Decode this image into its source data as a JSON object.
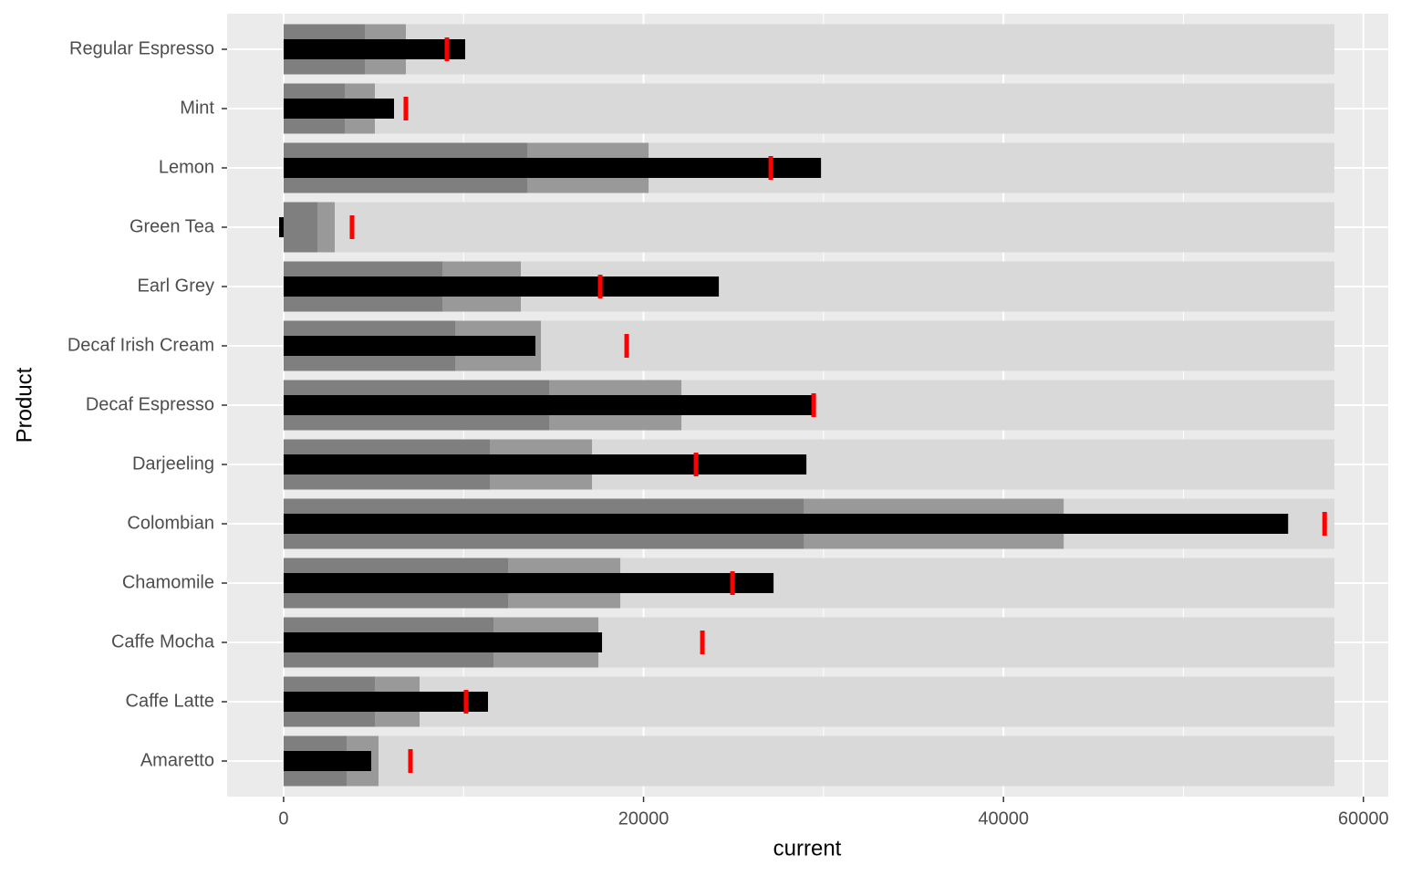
{
  "chart_data": {
    "type": "bullet",
    "x_label": "current",
    "y_label": "Product",
    "categories": [
      "Amaretto",
      "Caffe Latte",
      "Caffe Mocha",
      "Chamomile",
      "Colombian",
      "Darjeeling",
      "Decaf Espresso",
      "Decaf Irish Cream",
      "Earl Grey",
      "Green Tea",
      "Lemon",
      "Mint",
      "Regular Espresso"
    ],
    "high_range": {
      "color": "#d9d9d9",
      "values": [
        58390,
        58390,
        58390,
        58390,
        58390,
        58390,
        58390,
        58390,
        58390,
        58390,
        58390,
        58390,
        58390
      ]
    },
    "mid_range": {
      "color": "#999999",
      "values": [
        5272,
        7554,
        17490,
        18707,
        43346,
        17136,
        22104,
        14297,
        13181,
        2839,
        20279,
        5070,
        6793
      ]
    },
    "low_range": {
      "color": "#7f7f7f",
      "values": [
        3498,
        5070,
        11660,
        12471,
        28897,
        11458,
        14753,
        9531,
        8821,
        1876,
        13536,
        3397,
        4512
      ]
    },
    "current": {
      "color": "#000000",
      "values": [
        4867,
        11356,
        17693,
        27224,
        55817,
        29049,
        29455,
        13992,
        24183,
        -250,
        29861,
        6134,
        10089
      ]
    },
    "target": {
      "color": "#ff0000",
      "values": [
        7047,
        10139,
        23270,
        24943,
        57845,
        22915,
        29455,
        19062,
        17592,
        3802,
        27072,
        6793,
        9075
      ]
    },
    "xlim": [
      -3140,
      61380
    ],
    "xticks": [
      0,
      20000,
      40000,
      60000
    ],
    "xminor_ticks": [
      10000,
      30000,
      50000
    ],
    "grid": true
  }
}
